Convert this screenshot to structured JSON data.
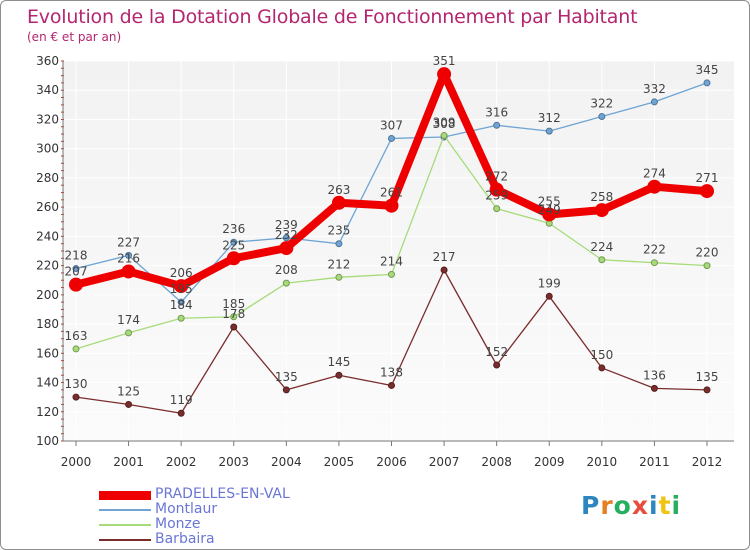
{
  "title": "Evolution de la Dotation Globale de Fonctionnement par Habitant",
  "subtitle": "(en € et par an)",
  "logo": {
    "text": "Proxiti",
    "letters": [
      "P",
      "r",
      "o",
      "x",
      "i",
      "t",
      "i"
    ],
    "colors": [
      "#2e86c1",
      "#e67e22",
      "#27ae60",
      "#e74c3c",
      "#2e86c1",
      "#f1c40f",
      "#27ae60"
    ]
  },
  "chart_data": {
    "type": "line",
    "categories": [
      "2000",
      "2001",
      "2002",
      "2003",
      "2004",
      "2005",
      "2006",
      "2007",
      "2008",
      "2009",
      "2010",
      "2011",
      "2012"
    ],
    "ylim": [
      100,
      360
    ],
    "yticks": [
      100,
      120,
      140,
      160,
      180,
      200,
      220,
      240,
      260,
      280,
      300,
      320,
      340,
      360
    ],
    "grid": true,
    "legend_position": "bottom-left",
    "series": [
      {
        "name": "PRADELLES-EN-VAL",
        "color": "#ee0000",
        "style": "bold",
        "values": [
          207,
          216,
          206,
          225,
          232,
          263,
          261,
          351,
          272,
          255,
          258,
          274,
          271
        ],
        "labels": [
          "207",
          "216",
          "206",
          "225",
          "232",
          "263",
          "261",
          "351",
          "272",
          "255",
          "258",
          "274",
          "271"
        ]
      },
      {
        "name": "Montlaur",
        "color": "#6fa4d4",
        "style": "normal",
        "values": [
          218,
          227,
          195,
          236,
          239,
          235,
          307,
          308,
          316,
          312,
          322,
          332,
          345
        ],
        "labels": [
          "218",
          "227",
          "195",
          "236",
          "239",
          "235",
          "307",
          "308",
          "316",
          "312",
          "322",
          "332",
          "345"
        ]
      },
      {
        "name": "Monze",
        "color": "#a7db7a",
        "style": "normal",
        "values": [
          163,
          174,
          184,
          185,
          208,
          212,
          214,
          309,
          259,
          249,
          224,
          222,
          220
        ],
        "labels": [
          "163",
          "174",
          "184",
          "185",
          "208",
          "212",
          "214",
          "309",
          "259",
          "249",
          "224",
          "222",
          "220"
        ]
      },
      {
        "name": "Barbaira",
        "color": "#7a2d2d",
        "style": "normal",
        "values": [
          130,
          125,
          119,
          178,
          135,
          145,
          138,
          217,
          152,
          199,
          150,
          136,
          135
        ],
        "labels": [
          "130",
          "125",
          "119",
          "178",
          "135",
          "145",
          "138",
          "217",
          "152",
          "199",
          "150",
          "136",
          "135"
        ]
      }
    ]
  }
}
